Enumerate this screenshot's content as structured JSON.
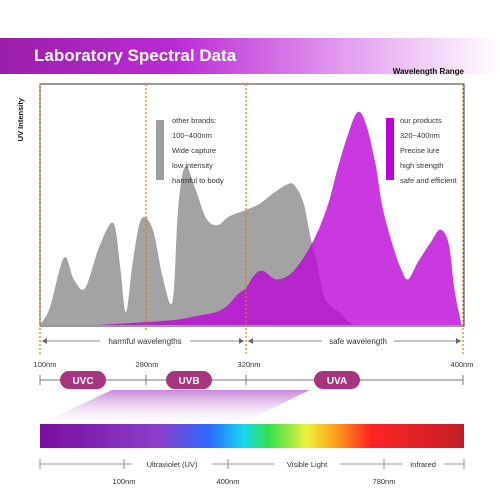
{
  "header": {
    "title": "Laboratory Spectral Data",
    "subtitle": "Wavelength Range"
  },
  "chart_data": {
    "type": "area",
    "ylabel": "UV Intensity",
    "xlim": [
      100,
      400
    ],
    "series": [
      {
        "name": "other brands",
        "x": [
          100,
          107,
          117,
          124,
          132,
          142,
          152,
          157,
          161,
          166,
          172,
          180,
          187,
          194,
          198,
          203,
          210,
          218,
          226,
          234,
          246,
          256,
          266,
          276,
          281,
          287,
          292,
          296,
          299,
          303,
          312,
          318,
          322
        ],
        "y": [
          0,
          0.08,
          0.31,
          0.21,
          0.17,
          0.36,
          0.47,
          0.26,
          0.06,
          0.3,
          0.49,
          0.44,
          0.22,
          0.11,
          0.54,
          0.73,
          0.63,
          0.49,
          0.46,
          0.5,
          0.53,
          0.56,
          0.61,
          0.65,
          0.64,
          0.56,
          0.4,
          0.3,
          0.2,
          0.11,
          0.06,
          0.02,
          0
        ]
      },
      {
        "name": "our products",
        "x": [
          140,
          190,
          210,
          225,
          233,
          240,
          246,
          252,
          258,
          268,
          280,
          294,
          304,
          311,
          318,
          325,
          331,
          338,
          343,
          351,
          356,
          361,
          368,
          377,
          384,
          390,
          394,
          399
        ],
        "y": [
          0,
          0.02,
          0.04,
          0.06,
          0.09,
          0.14,
          0.17,
          0.23,
          0.25,
          0.21,
          0.25,
          0.39,
          0.55,
          0.72,
          0.87,
          0.98,
          0.93,
          0.74,
          0.54,
          0.35,
          0.26,
          0.21,
          0.29,
          0.38,
          0.44,
          0.37,
          0.16,
          0
        ]
      }
    ]
  },
  "annotations": {
    "other": [
      "other brands:",
      "100~400nm",
      "Wide capture",
      "low intensity",
      "harmful to body"
    ],
    "ours": [
      "our products",
      "320~400nm",
      "Precise lure",
      "high strength",
      "safe and efficient"
    ]
  },
  "regions": {
    "harmful": "harmful wavelengths",
    "safe": "safe wavelength",
    "ticks": [
      "100nm",
      "280nm",
      "320nm",
      "400nm"
    ]
  },
  "bands": [
    "UVC",
    "UVB",
    "UVA"
  ],
  "spectrum": {
    "labels": [
      "Ultraviolet (UV)",
      "Visible Light",
      "Infrared"
    ],
    "ticks": [
      "100nm",
      "400nm",
      "780nm"
    ]
  },
  "colors": {
    "other": "#9e9e9e",
    "ours": "#bb00d6",
    "accent": "#e07a00",
    "pill": "#a7347c"
  }
}
